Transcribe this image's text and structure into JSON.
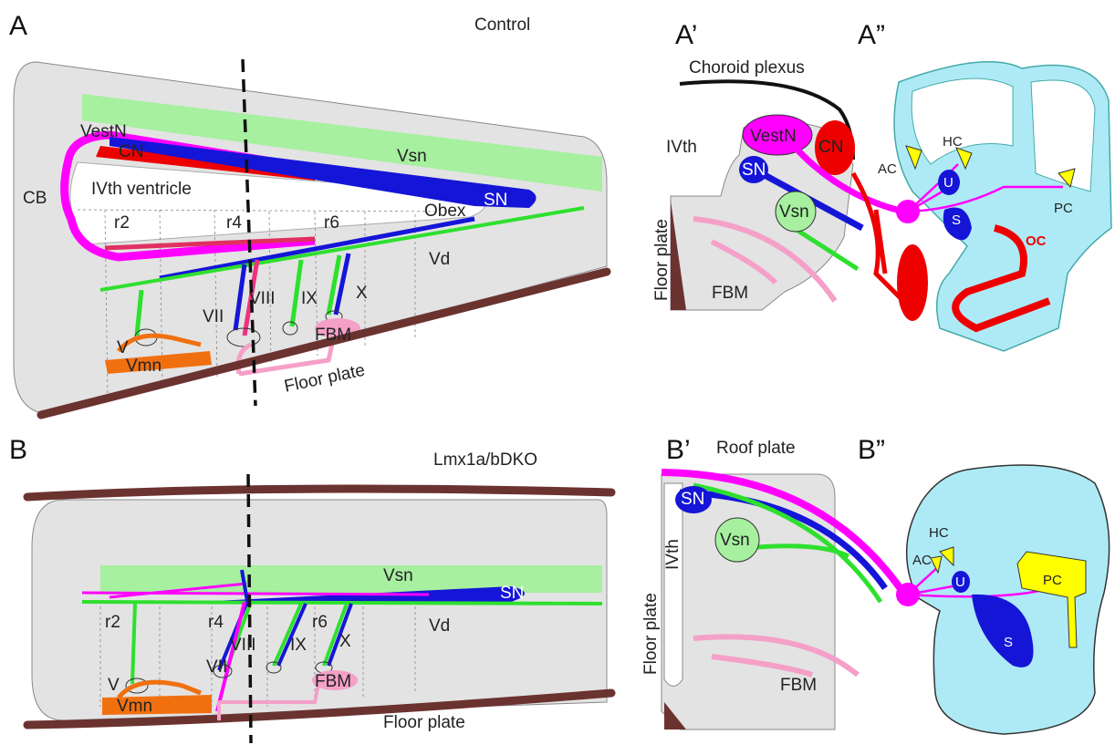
{
  "panels": [
    {
      "label": "A",
      "title": "Control",
      "labels": [
        "VestN",
        "CN",
        "IVth ventricle",
        "CB",
        "Vsn",
        "SN",
        "Obex",
        "r2",
        "r4",
        "r6",
        "Vd",
        "VII",
        "VIII",
        "IX",
        "X",
        "V",
        "Vmn",
        "FBM",
        "Floor plate"
      ]
    },
    {
      "label": "A’",
      "labels": [
        "Choroid plexus",
        "IVth",
        "VestN",
        "CN",
        "SN",
        "Vsn",
        "Floor plate",
        "FBM"
      ]
    },
    {
      "label": "A”",
      "labels": [
        "HC",
        "AC",
        "U",
        "S",
        "PC",
        "OC"
      ]
    },
    {
      "label": "B",
      "title": "Lmx1a/bDKO",
      "labels": [
        "Vsn",
        "SN",
        "r2",
        "r4",
        "r6",
        "Vd",
        "VII",
        "VIII",
        "IX",
        "X",
        "V",
        "Vmn",
        "FBM",
        "Floor plate"
      ]
    },
    {
      "label": "B’",
      "labels": [
        "Roof plate",
        "SN",
        "Vsn",
        "IVth",
        "Floor plate",
        "FBM"
      ]
    },
    {
      "label": "B”",
      "labels": [
        "HC",
        "AC",
        "U",
        "S",
        "PC"
      ]
    }
  ]
}
